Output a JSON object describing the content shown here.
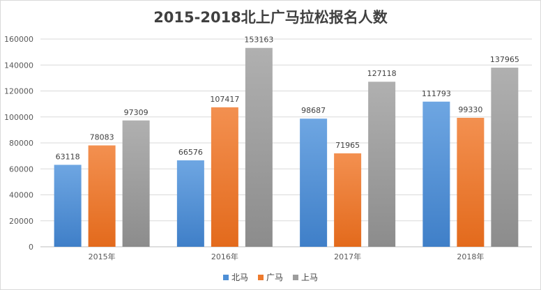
{
  "chart_data": {
    "type": "bar",
    "title": "2015-2018北上广马拉松报名人数",
    "categories": [
      "2015年",
      "2016年",
      "2017年",
      "2018年"
    ],
    "series": [
      {
        "name": "北马",
        "values": [
          63118,
          66576,
          98687,
          111793
        ],
        "color": "#4e8fd6"
      },
      {
        "name": "广马",
        "values": [
          78083,
          107417,
          71965,
          99330
        ],
        "color": "#ee7a2d"
      },
      {
        "name": "上马",
        "values": [
          97309,
          153163,
          127118,
          137965
        ],
        "color": "#9d9d9d"
      }
    ],
    "ylim": [
      0,
      160000
    ],
    "yticks": [
      0,
      20000,
      40000,
      60000,
      80000,
      100000,
      120000,
      140000,
      160000
    ],
    "grid": true,
    "legend_position": "bottom",
    "data_labels": true
  }
}
